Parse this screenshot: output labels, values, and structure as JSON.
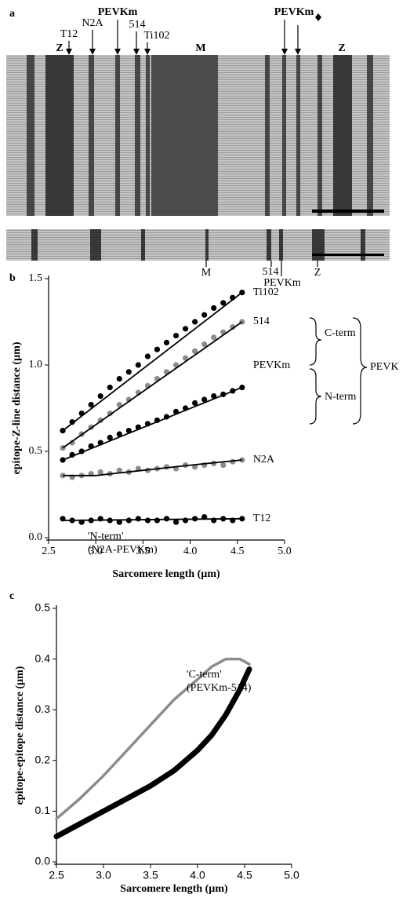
{
  "panel_a": {
    "panel_label": "a",
    "top_labels": [
      "Z",
      "T12",
      "N2A",
      "PEVKm",
      "514",
      "Ti102",
      "M",
      "PEVKm",
      "Z"
    ],
    "bottom_labels": [
      "M",
      "514",
      "PEVKm",
      "Z"
    ]
  },
  "chart_data": [
    {
      "type": "scatter",
      "panel_label": "b",
      "x_label": "Sarcomere length (µm)",
      "y_label": "epitope-Z-line distance (µm)",
      "xlim": [
        2.5,
        5.0
      ],
      "ylim": [
        0,
        1.5
      ],
      "xticks": [
        2.5,
        {
          "value": 3,
          "label": "3.0"
        },
        3.5,
        {
          "value": 4,
          "label": "4.0"
        },
        4.5,
        {
          "value": 5,
          "label": "5.0"
        }
      ],
      "yticks": [
        {
          "value": 0,
          "label": "0.0"
        },
        0.5,
        {
          "value": 1,
          "label": "1.0"
        },
        1.5
      ],
      "brackets": [
        "C-term",
        "N-term",
        "PEVK"
      ],
      "series": [
        {
          "name": "T12",
          "color": "#000000",
          "x": [
            2.65,
            2.75,
            2.85,
            2.95,
            3.05,
            3.15,
            3.25,
            3.35,
            3.45,
            3.55,
            3.65,
            3.75,
            3.85,
            3.95,
            4.05,
            4.15,
            4.25,
            4.35,
            4.45,
            4.55
          ],
          "values": [
            0.11,
            0.1,
            0.09,
            0.1,
            0.11,
            0.1,
            0.09,
            0.1,
            0.11,
            0.1,
            0.1,
            0.11,
            0.09,
            0.1,
            0.11,
            0.12,
            0.1,
            0.11,
            0.1,
            0.11
          ],
          "fit": {
            "x": [
              2.65,
              4.55
            ],
            "values": [
              0.1,
              0.11
            ]
          }
        },
        {
          "name": "N2A",
          "color": "#8c8c8c",
          "x": [
            2.65,
            2.75,
            2.85,
            2.95,
            3.05,
            3.15,
            3.25,
            3.35,
            3.45,
            3.55,
            3.65,
            3.75,
            3.85,
            3.95,
            4.05,
            4.15,
            4.25,
            4.35,
            4.45,
            4.55
          ],
          "values": [
            0.36,
            0.35,
            0.36,
            0.37,
            0.38,
            0.37,
            0.39,
            0.38,
            0.4,
            0.39,
            0.4,
            0.41,
            0.4,
            0.42,
            0.41,
            0.42,
            0.43,
            0.42,
            0.44,
            0.45
          ],
          "fit": {
            "x": [
              2.65,
              3.0,
              3.5,
              4.0,
              4.55
            ],
            "values": [
              0.36,
              0.36,
              0.39,
              0.42,
              0.45
            ]
          }
        },
        {
          "name": "PEVKm",
          "color": "#000000",
          "x": [
            2.65,
            2.75,
            2.85,
            2.95,
            3.05,
            3.15,
            3.25,
            3.35,
            3.45,
            3.55,
            3.65,
            3.75,
            3.85,
            3.95,
            4.05,
            4.15,
            4.25,
            4.35,
            4.45,
            4.55
          ],
          "values": [
            0.45,
            0.48,
            0.5,
            0.53,
            0.55,
            0.58,
            0.6,
            0.62,
            0.64,
            0.66,
            0.68,
            0.7,
            0.73,
            0.75,
            0.78,
            0.8,
            0.82,
            0.83,
            0.85,
            0.87
          ],
          "fit": {
            "x": [
              2.65,
              4.55
            ],
            "values": [
              0.45,
              0.87
            ]
          }
        },
        {
          "name": "514",
          "color": "#8c8c8c",
          "x": [
            2.65,
            2.75,
            2.85,
            2.95,
            3.05,
            3.15,
            3.25,
            3.35,
            3.45,
            3.55,
            3.65,
            3.75,
            3.85,
            3.95,
            4.05,
            4.15,
            4.25,
            4.35,
            4.45,
            4.55
          ],
          "values": [
            0.52,
            0.55,
            0.6,
            0.64,
            0.68,
            0.72,
            0.77,
            0.8,
            0.84,
            0.88,
            0.92,
            0.96,
            1.0,
            1.04,
            1.08,
            1.12,
            1.16,
            1.19,
            1.22,
            1.25
          ],
          "fit": {
            "x": [
              2.65,
              4.55
            ],
            "values": [
              0.52,
              1.25
            ]
          }
        },
        {
          "name": "Ti102",
          "color": "#000000",
          "x": [
            2.65,
            2.75,
            2.85,
            2.95,
            3.05,
            3.15,
            3.25,
            3.35,
            3.45,
            3.55,
            3.65,
            3.75,
            3.85,
            3.95,
            4.05,
            4.15,
            4.25,
            4.35,
            4.45,
            4.55
          ],
          "values": [
            0.62,
            0.67,
            0.72,
            0.77,
            0.82,
            0.87,
            0.92,
            0.96,
            1.0,
            1.05,
            1.09,
            1.13,
            1.17,
            1.21,
            1.25,
            1.29,
            1.33,
            1.36,
            1.39,
            1.42
          ],
          "fit": {
            "x": [
              2.65,
              4.55
            ],
            "values": [
              0.62,
              1.42
            ]
          }
        }
      ]
    },
    {
      "type": "line",
      "panel_label": "c",
      "x_label": "Sarcomere length (µm)",
      "y_label": "epitope-epitope distance (µm)",
      "xlim": [
        2.5,
        5.0
      ],
      "ylim": [
        0,
        0.5
      ],
      "xticks": [
        2.5,
        {
          "value": 3,
          "label": "3.0"
        },
        3.5,
        {
          "value": 4,
          "label": "4.0"
        },
        4.5,
        {
          "value": 5,
          "label": "5.0"
        }
      ],
      "yticks": [
        {
          "value": 0,
          "label": "0.0"
        },
        0.1,
        0.2,
        0.3,
        0.4,
        0.5
      ],
      "series": [
        {
          "name": "'N-term'",
          "note": "(N2A-PEVKm)",
          "color": "#8c8c8c",
          "x": [
            2.5,
            2.75,
            3.0,
            3.25,
            3.5,
            3.75,
            4.0,
            4.15,
            4.3,
            4.45,
            4.55
          ],
          "values": [
            0.085,
            0.125,
            0.17,
            0.22,
            0.27,
            0.32,
            0.36,
            0.385,
            0.4,
            0.4,
            0.39
          ]
        },
        {
          "name": "'C-term'",
          "note": "(PEVKm-514)",
          "color": "#000000",
          "x": [
            2.5,
            2.75,
            3.0,
            3.25,
            3.5,
            3.75,
            4.0,
            4.15,
            4.3,
            4.45,
            4.55
          ],
          "values": [
            0.05,
            0.075,
            0.1,
            0.125,
            0.15,
            0.18,
            0.22,
            0.25,
            0.29,
            0.34,
            0.38
          ]
        }
      ]
    }
  ]
}
